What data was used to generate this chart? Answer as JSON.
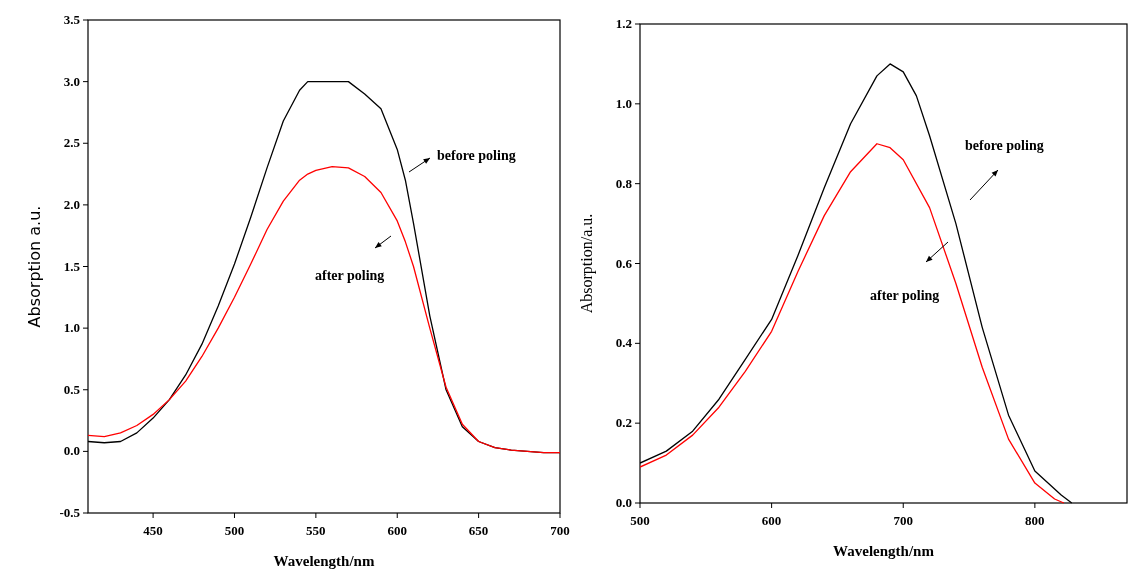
{
  "chart_data": [
    {
      "type": "line",
      "xlabel": "Wavelength/nm",
      "ylabel": "Absorption a.u.",
      "xlim": [
        410,
        700
      ],
      "ylim": [
        -0.5,
        3.5
      ],
      "xticks": [
        450,
        500,
        550,
        600,
        650,
        700
      ],
      "yticks": [
        {
          "value": -0.5,
          "label": "-0.5"
        },
        {
          "value": 0,
          "label": "0.0"
        },
        {
          "value": 0.5,
          "label": "0.5"
        },
        {
          "value": 1,
          "label": "1.0"
        },
        {
          "value": 1.5,
          "label": "1.5"
        },
        {
          "value": 2,
          "label": "2.0"
        },
        {
          "value": 2.5,
          "label": "2.5"
        },
        {
          "value": 3,
          "label": "3.0"
        },
        {
          "value": 3.5,
          "label": "3.5"
        }
      ],
      "grid": false,
      "x": [
        410,
        420,
        430,
        440,
        450,
        460,
        470,
        480,
        490,
        500,
        510,
        520,
        530,
        540,
        545,
        550,
        560,
        570,
        580,
        590,
        600,
        605,
        610,
        620,
        630,
        640,
        650,
        660,
        670,
        680,
        690,
        700
      ],
      "series": [
        {
          "color": "#000000",
          "values": [
            0.08,
            0.07,
            0.08,
            0.15,
            0.27,
            0.42,
            0.62,
            0.87,
            1.18,
            1.52,
            1.9,
            2.3,
            2.68,
            2.93,
            3.0,
            3.0,
            3.0,
            3.0,
            2.9,
            2.78,
            2.45,
            2.2,
            1.85,
            1.1,
            0.5,
            0.2,
            0.08,
            0.03,
            0.01,
            0.0,
            -0.01,
            -0.01
          ]
        },
        {
          "color": "#ff0000",
          "values": [
            0.13,
            0.12,
            0.15,
            0.21,
            0.3,
            0.42,
            0.57,
            0.77,
            1.0,
            1.25,
            1.52,
            1.8,
            2.03,
            2.2,
            2.25,
            2.28,
            2.31,
            2.3,
            2.23,
            2.1,
            1.87,
            1.7,
            1.5,
            1.0,
            0.52,
            0.22,
            0.08,
            0.03,
            0.01,
            0.0,
            -0.01,
            -0.01
          ]
        }
      ],
      "annotations": [
        "before poling",
        "after poling"
      ]
    },
    {
      "type": "line",
      "xlabel": "Wavelength/nm",
      "ylabel": "Absorption/a.u.",
      "xlim": [
        500,
        870
      ],
      "ylim": [
        0,
        1.2
      ],
      "xticks": [
        500,
        600,
        700,
        800
      ],
      "yticks": [
        {
          "value": 0,
          "label": "0.0"
        },
        {
          "value": 0.2,
          "label": "0.2"
        },
        {
          "value": 0.4,
          "label": "0.4"
        },
        {
          "value": 0.6,
          "label": "0.6"
        },
        {
          "value": 0.8,
          "label": "0.8"
        },
        {
          "value": 1,
          "label": "1.0"
        },
        {
          "value": 1.2,
          "label": "1.2"
        }
      ],
      "grid": false,
      "series": [
        {
          "color": "#000000",
          "x": [
            500,
            520,
            540,
            560,
            580,
            600,
            620,
            640,
            660,
            680,
            690,
            700,
            710,
            720,
            740,
            760,
            780,
            800,
            820,
            828
          ],
          "values": [
            0.1,
            0.13,
            0.18,
            0.26,
            0.36,
            0.46,
            0.62,
            0.79,
            0.95,
            1.07,
            1.1,
            1.08,
            1.02,
            0.92,
            0.7,
            0.44,
            0.22,
            0.08,
            0.02,
            0
          ]
        },
        {
          "color": "#ff0000",
          "x": [
            500,
            520,
            540,
            560,
            580,
            600,
            620,
            640,
            660,
            680,
            690,
            700,
            720,
            740,
            760,
            780,
            800,
            815,
            822
          ],
          "values": [
            0.09,
            0.12,
            0.17,
            0.24,
            0.33,
            0.43,
            0.58,
            0.72,
            0.83,
            0.9,
            0.89,
            0.86,
            0.74,
            0.55,
            0.34,
            0.16,
            0.05,
            0.01,
            0
          ]
        }
      ],
      "annotations": [
        "before poling",
        "after poling"
      ]
    }
  ]
}
